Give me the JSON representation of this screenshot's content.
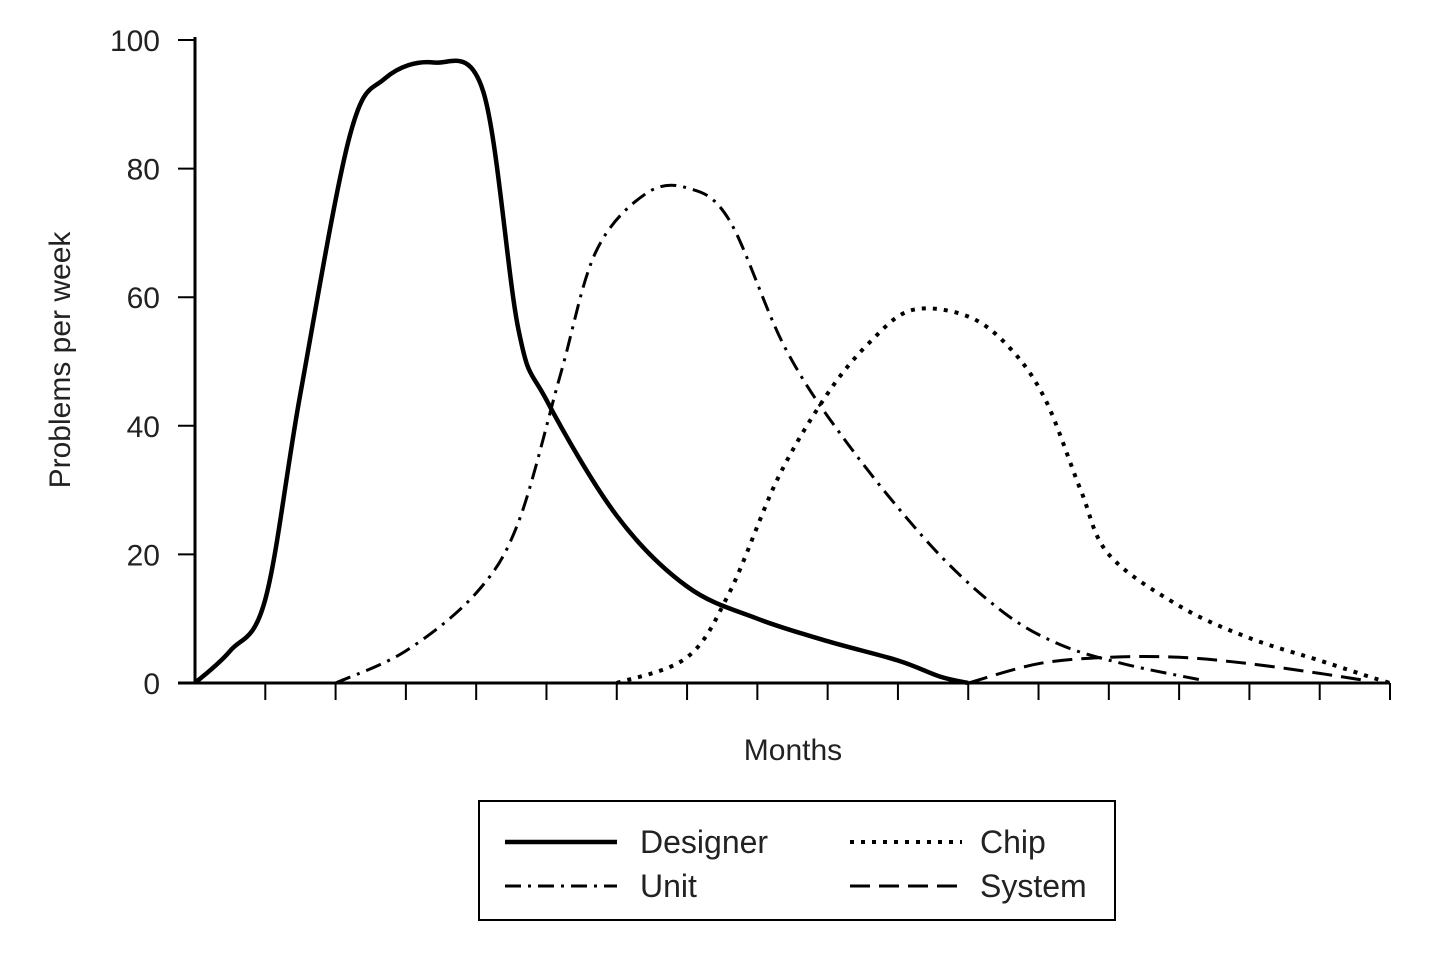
{
  "chart_data": {
    "type": "line",
    "title": "",
    "xlabel": "Months",
    "ylabel": "Problems per week",
    "ylim": [
      0,
      100
    ],
    "yticks": [
      0,
      20,
      40,
      60,
      80,
      100
    ],
    "xlim": [
      0,
      17
    ],
    "x_tick_count": 17,
    "x_tick_labels_shown": false,
    "grid": false,
    "legend_position": "bottom-center",
    "series": [
      {
        "name": "Designer",
        "style": "solid",
        "color": "#000000",
        "points": [
          [
            0.0,
            0
          ],
          [
            0.5,
            5
          ],
          [
            1.0,
            13
          ],
          [
            1.5,
            45
          ],
          [
            2.2,
            85
          ],
          [
            2.7,
            94
          ],
          [
            3.4,
            96.5
          ],
          [
            4.1,
            92
          ],
          [
            4.6,
            55
          ],
          [
            5.0,
            44
          ],
          [
            6.0,
            26
          ],
          [
            7.0,
            15
          ],
          [
            8.0,
            10
          ],
          [
            9.0,
            6.5
          ],
          [
            10.0,
            3.5
          ],
          [
            10.6,
            1
          ],
          [
            11.0,
            0
          ]
        ]
      },
      {
        "name": "Unit",
        "style": "dashdot",
        "color": "#000000",
        "points": [
          [
            2.0,
            0
          ],
          [
            3.0,
            5
          ],
          [
            4.0,
            14
          ],
          [
            4.6,
            25
          ],
          [
            5.2,
            48
          ],
          [
            5.7,
            67
          ],
          [
            6.4,
            76
          ],
          [
            7.0,
            77
          ],
          [
            7.6,
            72
          ],
          [
            8.4,
            52
          ],
          [
            9.3,
            37
          ],
          [
            10.5,
            21
          ],
          [
            11.5,
            11
          ],
          [
            12.3,
            6
          ],
          [
            13.2,
            3
          ],
          [
            14.3,
            0.5
          ]
        ]
      },
      {
        "name": "Chip",
        "style": "dotted",
        "color": "#000000",
        "points": [
          [
            6.0,
            0
          ],
          [
            7.0,
            4
          ],
          [
            7.6,
            14
          ],
          [
            8.3,
            32
          ],
          [
            9.0,
            45
          ],
          [
            9.6,
            53
          ],
          [
            10.2,
            58
          ],
          [
            11.0,
            57
          ],
          [
            11.6,
            52
          ],
          [
            12.1,
            44
          ],
          [
            12.6,
            30
          ],
          [
            13.0,
            20
          ],
          [
            14.0,
            12
          ],
          [
            15.0,
            7
          ],
          [
            16.0,
            3.5
          ],
          [
            16.7,
            1
          ],
          [
            17.0,
            0
          ]
        ]
      },
      {
        "name": "System",
        "style": "dashed",
        "color": "#000000",
        "points": [
          [
            11.0,
            0
          ],
          [
            12.0,
            3
          ],
          [
            13.0,
            4
          ],
          [
            14.0,
            4
          ],
          [
            15.0,
            3
          ],
          [
            16.0,
            1.5
          ],
          [
            16.7,
            0.3
          ]
        ]
      }
    ],
    "legend": [
      "Designer",
      "Unit",
      "Chip",
      "System"
    ]
  }
}
